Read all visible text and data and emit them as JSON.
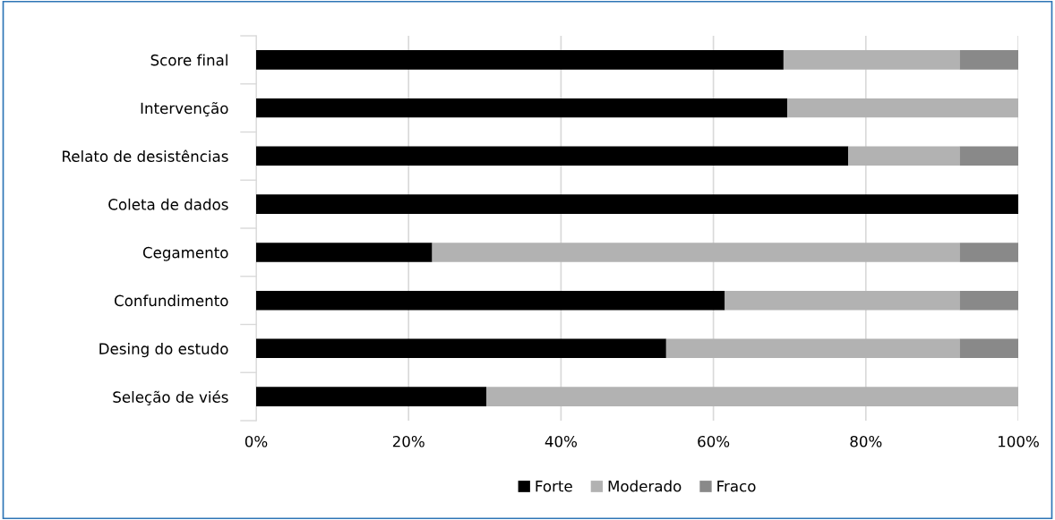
{
  "chart_data": {
    "type": "bar",
    "orientation": "horizontal",
    "stacked": true,
    "categories": [
      "Score final",
      "Intervenção",
      "Relato de desistências",
      "Coleta de dados",
      "Cegamento",
      "Confundimento",
      "Desing do estudo",
      "Seleção de viés"
    ],
    "series": [
      {
        "name": "Forte",
        "color": "#000000",
        "values": [
          69.2,
          69.7,
          77.7,
          100,
          23.1,
          61.5,
          53.8,
          30.2
        ]
      },
      {
        "name": "Moderado",
        "color": "#b2b2b2",
        "values": [
          23.1,
          30.3,
          14.6,
          0,
          69.2,
          30.8,
          38.5,
          69.8
        ]
      },
      {
        "name": "Fraco",
        "color": "#898989",
        "values": [
          7.7,
          0,
          7.7,
          0,
          7.7,
          7.7,
          7.7,
          0
        ]
      }
    ],
    "xlim": [
      0,
      100
    ],
    "xticks": [
      {
        "value": 0,
        "label": "0%"
      },
      {
        "value": 20,
        "label": "20%"
      },
      {
        "value": 40,
        "label": "40%"
      },
      {
        "value": 60,
        "label": "60%"
      },
      {
        "value": 80,
        "label": "80%"
      },
      {
        "value": 100,
        "label": "100%"
      }
    ],
    "grid": "x",
    "legend": "bottom"
  }
}
